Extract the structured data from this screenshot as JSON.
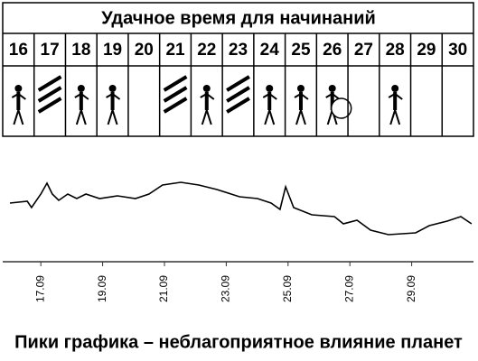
{
  "calendar": {
    "title": "Удачное время для начинаний",
    "days": [
      "16",
      "17",
      "18",
      "19",
      "20",
      "21",
      "22",
      "23",
      "24",
      "25",
      "26",
      "27",
      "28",
      "29",
      "30"
    ]
  },
  "chart_data": {
    "type": "line",
    "caption": "Пики графика – неблагоприятное влияние планет",
    "x": [
      16.0,
      16.56,
      16.7,
      17.0,
      17.2,
      17.37,
      17.58,
      17.87,
      18.16,
      18.46,
      18.9,
      19.48,
      20.06,
      20.5,
      20.94,
      21.53,
      22.11,
      22.7,
      23.43,
      24.01,
      24.45,
      24.74,
      24.92,
      25.18,
      25.77,
      26.5,
      26.79,
      27.23,
      27.67,
      28.25,
      29.13,
      29.57,
      30.15,
      30.59,
      30.94
    ],
    "values": [
      65,
      67,
      60,
      75,
      87,
      75,
      68,
      75,
      70,
      75,
      70,
      73,
      70,
      75,
      85,
      88,
      85,
      80,
      72,
      70,
      65,
      58,
      83,
      60,
      52,
      50,
      42,
      46,
      35,
      30,
      32,
      40,
      45,
      50,
      42
    ],
    "color": "#000000",
    "xlim": [
      16,
      31
    ],
    "xticks": [
      {
        "value": 17,
        "label": "17.09"
      },
      {
        "value": 19,
        "label": "19.09"
      },
      {
        "value": 21,
        "label": "21.09"
      },
      {
        "value": 23,
        "label": "23.09"
      },
      {
        "value": 25,
        "label": "25.09"
      },
      {
        "value": 27,
        "label": "27.09"
      },
      {
        "value": 29,
        "label": "29.09"
      }
    ],
    "ylim": [
      0,
      100
    ]
  }
}
